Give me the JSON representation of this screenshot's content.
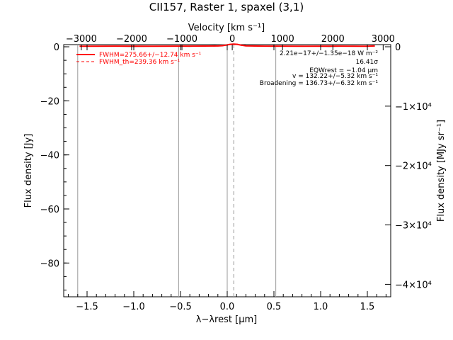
{
  "chart_data": {
    "type": "line",
    "title": "CII157, Raster 1, spaxel (3,1)",
    "xlabel": "λ−λrest [μm]",
    "ylabel_left": "Flux density [Jy]",
    "xlabel_top": "Velocity [km s⁻¹]",
    "ylabel_right": "Flux density [MJy sr⁻¹]",
    "xlim": [
      -1.75,
      1.75
    ],
    "ylim": [
      -92.5,
      0.8
    ],
    "x_ticks": [
      -1.5,
      -1.0,
      -0.5,
      0.0,
      0.5,
      1.0,
      1.5
    ],
    "x_tick_labels": [
      "−1.5",
      "−1.0",
      "−0.5",
      "0.0",
      "0.5",
      "1.0",
      "1.5"
    ],
    "y_ticks": [
      0,
      -20,
      -40,
      -60,
      -80
    ],
    "y_tick_labels": [
      "0",
      "−20",
      "−40",
      "−60",
      "−80"
    ],
    "top_ticks": [
      -3000,
      -2000,
      -1000,
      0,
      1000,
      2000,
      3000
    ],
    "top_tick_labels": [
      "−3000",
      "−2000",
      "−1000",
      "0",
      "1000",
      "2000",
      "3000"
    ],
    "right_ticks": [
      0,
      -10000,
      -20000,
      -30000,
      -40000
    ],
    "right_tick_labels": [
      "0",
      "−1×10⁴",
      "−2×10⁴",
      "−3×10⁴",
      "−4×10⁴"
    ],
    "vertical_lines_solid": [
      -1.6,
      -0.52,
      0.0,
      0.52
    ],
    "vertical_lines_dashed": [
      0.07
    ],
    "series": [
      {
        "name": "FWHM=275.66+/−12.74 km s⁻¹",
        "color": "#ff0000",
        "style": "solid",
        "x": [
          -1.58,
          -1.2,
          -0.8,
          -0.4,
          -0.1,
          -0.05,
          0.0,
          0.03,
          0.07,
          0.11,
          0.15,
          0.2,
          0.4,
          0.8,
          1.2,
          1.5,
          1.58
        ],
        "y": [
          0.2,
          0.25,
          0.2,
          0.25,
          0.3,
          0.4,
          0.7,
          0.9,
          1.0,
          0.9,
          0.6,
          0.35,
          0.25,
          0.2,
          0.25,
          0.2,
          0.3
        ]
      },
      {
        "name": "FWHM_th=239.36 km s⁻¹",
        "color": "#ff0000",
        "style": "dashed",
        "x": [
          -0.15,
          -0.05,
          0.0,
          0.07,
          0.14,
          0.2,
          0.3
        ],
        "y": [
          0.2,
          0.45,
          0.75,
          1.0,
          0.75,
          0.45,
          0.2
        ]
      },
      {
        "name": "",
        "color": "#aaaaaa",
        "style": "solid",
        "x": [
          -1.55,
          -1.3,
          -1.0,
          -0.7,
          -0.4,
          -0.2,
          0.0,
          0.07,
          0.2,
          0.5,
          0.8,
          1.1,
          1.35,
          1.5
        ],
        "y": [
          0.1,
          0.3,
          0.0,
          0.25,
          0.1,
          0.4,
          0.8,
          1.0,
          0.3,
          0.1,
          0.3,
          0.0,
          0.35,
          0.2
        ]
      }
    ],
    "legend": [
      {
        "label": "FWHM=275.66+/−12.74 km s⁻¹",
        "style": "solid",
        "color": "#ff0000"
      },
      {
        "label": "FWHM_th=239.36 km s⁻¹",
        "style": "dashed",
        "color": "#ff0000"
      }
    ],
    "annotations": [
      "2.21e−17+/−1.35e−18 W m⁻²",
      "16.41σ",
      "EQWrest = −1.04 μm",
      "v = 132.22+/−5.32 km s⁻¹",
      "Broadening = 136.73+/−6.32 km s⁻¹"
    ],
    "legend_placement": "top-left",
    "grid": false
  }
}
